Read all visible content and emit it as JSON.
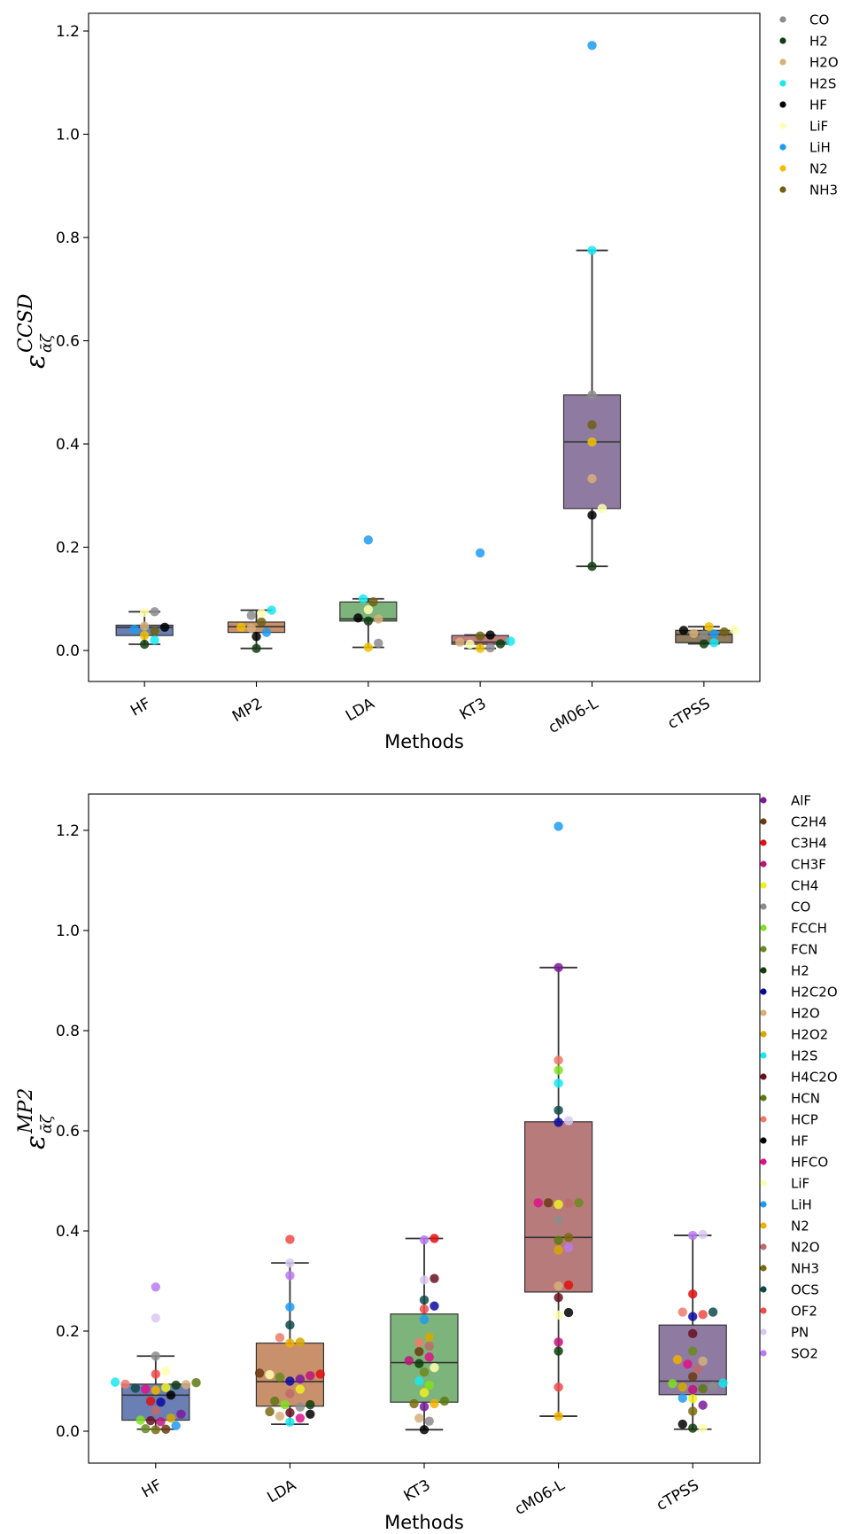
{
  "figure": {
    "panel1": {
      "ylabel_main": "ε",
      "ylabel_sub": "ᾱζ",
      "ylabel_sup": "CCSD"
    },
    "panel2": {
      "ylabel_main": "ε",
      "ylabel_sub": "ᾱζ",
      "ylabel_sup": "MP2"
    }
  },
  "chart_data": [
    {
      "type": "box",
      "xlabel": "Methods",
      "ylabel": "ε_ᾱζ^CCSD",
      "ylim": [
        -0.06,
        1.23
      ],
      "yticks": [
        "0.0",
        "0.2",
        "0.4",
        "0.6",
        "0.8",
        "1.0",
        "1.2"
      ],
      "categories": [
        "HF",
        "MP2",
        "LDA",
        "KT3",
        "cM06-L",
        "cTPSS"
      ],
      "box_colors": [
        "#6a7fb4",
        "#c9906c",
        "#7db47b",
        "#c17c7c",
        "#8f7ba2",
        "#8f7b5e"
      ],
      "boxes": [
        {
          "method": "HF",
          "whislo": 0.012,
          "q1": 0.029,
          "med": 0.045,
          "q3": 0.049,
          "whishi": 0.075
        },
        {
          "method": "MP2",
          "whislo": 0.004,
          "q1": 0.035,
          "med": 0.046,
          "q3": 0.055,
          "whishi": 0.078
        },
        {
          "method": "LDA",
          "whislo": 0.006,
          "q1": 0.057,
          "med": 0.061,
          "q3": 0.094,
          "whishi": 0.1
        },
        {
          "method": "KT3",
          "whislo": 0.004,
          "q1": 0.012,
          "med": 0.016,
          "q3": 0.029,
          "whishi": 0.03
        },
        {
          "method": "cM06-L",
          "whislo": 0.163,
          "q1": 0.275,
          "med": 0.404,
          "q3": 0.495,
          "whishi": 0.775
        },
        {
          "method": "cTPSS",
          "whislo": 0.013,
          "q1": 0.015,
          "med": 0.031,
          "q3": 0.039,
          "whishi": 0.046
        }
      ],
      "legend": [
        {
          "name": "CO",
          "color": "#8c8c8c"
        },
        {
          "name": "H2",
          "color": "#0f3d0f"
        },
        {
          "name": "H2O",
          "color": "#d6b07a"
        },
        {
          "name": "H2S",
          "color": "#19e8f0"
        },
        {
          "name": "HF",
          "color": "#000000"
        },
        {
          "name": "LiF",
          "color": "#ffffb0"
        },
        {
          "name": "LiH",
          "color": "#1e9bf0"
        },
        {
          "name": "N2",
          "color": "#f0c000"
        },
        {
          "name": "NH3",
          "color": "#6e6010"
        }
      ],
      "points": {
        "HF": {
          "CO": 0.075,
          "H2": 0.012,
          "H2O": 0.047,
          "H2S": 0.02,
          "HF": 0.045,
          "LiF": 0.074,
          "LiH": 0.041,
          "N2": 0.029,
          "NH3": 0.038
        },
        "MP2": {
          "CO": 0.068,
          "H2": 0.004,
          "H2O": 0.043,
          "H2S": 0.078,
          "HF": 0.027,
          "LiF": 0.072,
          "LiH": 0.035,
          "N2": 0.045,
          "NH3": 0.055
        },
        "LDA": {
          "CO": 0.014,
          "H2": 0.057,
          "H2O": 0.061,
          "H2S": 0.1,
          "HF": 0.063,
          "LiF": 0.079,
          "LiH": 0.214,
          "N2": 0.006,
          "NH3": 0.094
        },
        "KT3": {
          "CO": 0.005,
          "H2": 0.013,
          "H2O": 0.016,
          "H2S": 0.018,
          "HF": 0.03,
          "LiF": 0.012,
          "LiH": 0.189,
          "N2": 0.004,
          "NH3": 0.028
        },
        "cM06-L": {
          "CO": 0.495,
          "H2": 0.163,
          "H2O": 0.333,
          "H2S": 0.775,
          "HF": 0.262,
          "LiF": 0.275,
          "LiH": 1.172,
          "N2": 0.404,
          "NH3": 0.437
        },
        "cTPSS": {
          "CO": 0.03,
          "H2": 0.013,
          "H2O": 0.033,
          "H2S": 0.015,
          "HF": 0.039,
          "LiF": 0.04,
          "LiH": 0.032,
          "N2": 0.046,
          "NH3": 0.036
        }
      }
    },
    {
      "type": "box",
      "xlabel": "Methods",
      "ylabel": "ε_ᾱζ^MP2",
      "ylim": [
        -0.065,
        1.275
      ],
      "yticks": [
        "0.0",
        "0.2",
        "0.4",
        "0.6",
        "0.8",
        "1.0",
        "1.2"
      ],
      "categories": [
        "HF",
        "LDA",
        "KT3",
        "cM06-L",
        "cTPSS"
      ],
      "box_colors": [
        "#6a7fb4",
        "#c9906c",
        "#7db47b",
        "#b87b7b",
        "#8f7ba2"
      ],
      "boxes": [
        {
          "method": "HF",
          "whislo": 0.004,
          "q1": 0.022,
          "med": 0.072,
          "q3": 0.094,
          "whishi": 0.15
        },
        {
          "method": "LDA",
          "whislo": 0.014,
          "q1": 0.05,
          "med": 0.099,
          "q3": 0.176,
          "whishi": 0.336
        },
        {
          "method": "KT3",
          "whislo": 0.003,
          "q1": 0.058,
          "med": 0.137,
          "q3": 0.234,
          "whishi": 0.385
        },
        {
          "method": "cM06-L",
          "whislo": 0.03,
          "q1": 0.278,
          "med": 0.387,
          "q3": 0.618,
          "whishi": 0.926
        },
        {
          "method": "cTPSS",
          "whislo": 0.004,
          "q1": 0.073,
          "med": 0.1,
          "q3": 0.212,
          "whishi": 0.391
        }
      ],
      "legend": [
        {
          "name": "AlF",
          "color": "#7a1a9a"
        },
        {
          "name": "C2H4",
          "color": "#6b3a10"
        },
        {
          "name": "C3H4",
          "color": "#e01010"
        },
        {
          "name": "CH3F",
          "color": "#c0147a"
        },
        {
          "name": "CH4",
          "color": "#f0f020"
        },
        {
          "name": "CO",
          "color": "#8c8c8c"
        },
        {
          "name": "FCCH",
          "color": "#80e020"
        },
        {
          "name": "FCN",
          "color": "#6a8a20"
        },
        {
          "name": "H2",
          "color": "#0f3d0f"
        },
        {
          "name": "H2C2O",
          "color": "#0a0aa0"
        },
        {
          "name": "H2O",
          "color": "#d6b07a"
        },
        {
          "name": "H2O2",
          "color": "#d6a800"
        },
        {
          "name": "H2S",
          "color": "#19e8f0"
        },
        {
          "name": "H4C2O",
          "color": "#6a1020"
        },
        {
          "name": "HCN",
          "color": "#5a7a10"
        },
        {
          "name": "HCP",
          "color": "#f07a6a"
        },
        {
          "name": "HF",
          "color": "#000000"
        },
        {
          "name": "HFCO",
          "color": "#e0108a"
        },
        {
          "name": "LiF",
          "color": "#ffffb0"
        },
        {
          "name": "LiH",
          "color": "#1e9bf0"
        },
        {
          "name": "N2",
          "color": "#f0b000"
        },
        {
          "name": "N2O",
          "color": "#c06a6a"
        },
        {
          "name": "NH3",
          "color": "#7a6a10"
        },
        {
          "name": "OCS",
          "color": "#0f4a4a"
        },
        {
          "name": "OF2",
          "color": "#f04a4a"
        },
        {
          "name": "PN",
          "color": "#d8c8f0"
        },
        {
          "name": "SO2",
          "color": "#b87af0"
        }
      ],
      "points": {
        "HF": {
          "AlF": 0.034,
          "C2H4": 0.004,
          "C3H4": 0.06,
          "CH3F": 0.019,
          "CH4": 0.087,
          "CO": 0.15,
          "FCCH": 0.022,
          "FCN": 0.005,
          "H2": 0.092,
          "H2C2O": 0.058,
          "H2O": 0.093,
          "H2O2": 0.026,
          "H2S": 0.098,
          "H4C2O": 0.021,
          "HCN": 0.097,
          "HCP": 0.094,
          "HF": 0.072,
          "HFCO": 0.084,
          "LiF": 0.12,
          "LiH": 0.011,
          "N2": 0.082,
          "N2O": 0.041,
          "NH3": 0.003,
          "OCS": 0.086,
          "OF2": 0.114,
          "PN": 0.226,
          "SO2": 0.288
        },
        "LDA": {
          "AlF": 0.104,
          "C2H4": 0.116,
          "C3H4": 0.114,
          "CH3F": 0.111,
          "CH4": 0.084,
          "CO": 0.048,
          "FCCH": 0.053,
          "FCN": 0.108,
          "H2": 0.053,
          "H2C2O": 0.1,
          "H2O": 0.03,
          "H2O2": 0.178,
          "H2S": 0.018,
          "H4C2O": 0.037,
          "HCN": 0.06,
          "HCP": 0.187,
          "HF": 0.034,
          "HFCO": 0.026,
          "LiF": 0.113,
          "LiH": 0.248,
          "N2": 0.176,
          "N2O": 0.075,
          "NH3": 0.039,
          "OCS": 0.212,
          "OF2": 0.383,
          "PN": 0.336,
          "SO2": 0.311
        },
        "KT3": {
          "AlF": 0.049,
          "C2H4": 0.159,
          "C3H4": 0.385,
          "CH3F": 0.141,
          "CH4": 0.077,
          "CO": 0.02,
          "FCCH": 0.092,
          "FCN": 0.118,
          "H2": 0.135,
          "H2C2O": 0.25,
          "H2O": 0.026,
          "H2O2": 0.188,
          "H2S": 0.1,
          "H4C2O": 0.305,
          "HCN": 0.06,
          "HCP": 0.177,
          "HF": 0.003,
          "HFCO": 0.148,
          "LiF": 0.127,
          "LiH": 0.223,
          "N2": 0.055,
          "N2O": 0.17,
          "NH3": 0.055,
          "OCS": 0.262,
          "OF2": 0.244,
          "PN": 0.302,
          "SO2": 0.382
        },
        "cM06-L": {
          "AlF": 0.926,
          "C2H4": 0.456,
          "C3H4": 0.292,
          "CH3F": 0.178,
          "CH4": 0.453,
          "CO": 0.421,
          "FCCH": 0.721,
          "FCN": 0.456,
          "H2": 0.16,
          "H2C2O": 0.617,
          "H2O": 0.29,
          "H2O2": 0.362,
          "H2S": 0.695,
          "H4C2O": 0.267,
          "HCN": 0.381,
          "HCP": 0.741,
          "HF": 0.237,
          "HFCO": 0.456,
          "LiF": 0.232,
          "LiH": 1.208,
          "N2": 0.03,
          "N2O": 0.455,
          "NH3": 0.387,
          "OCS": 0.641,
          "OF2": 0.088,
          "PN": 0.62,
          "SO2": 0.367
        },
        "cTPSS": {
          "AlF": 0.052,
          "C2H4": 0.109,
          "C3H4": 0.274,
          "CH3F": 0.083,
          "CH4": 0.065,
          "CO": 0.09,
          "FCCH": 0.095,
          "FCN": 0.16,
          "H2": 0.006,
          "H2C2O": 0.229,
          "H2O": 0.14,
          "H2O2": 0.088,
          "H2S": 0.096,
          "H4C2O": 0.195,
          "HCN": 0.085,
          "HCP": 0.238,
          "HF": 0.014,
          "HFCO": 0.134,
          "LiF": 0.006,
          "LiH": 0.066,
          "N2": 0.143,
          "N2O": 0.124,
          "NH3": 0.04,
          "OCS": 0.238,
          "OF2": 0.233,
          "PN": 0.393,
          "SO2": 0.391
        }
      }
    }
  ]
}
